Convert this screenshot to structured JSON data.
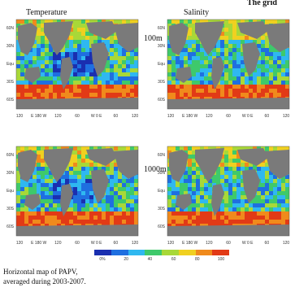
{
  "header": {
    "title_partial": "The grid"
  },
  "columns": [
    {
      "title": "Temperature"
    },
    {
      "title": "Salinity"
    }
  ],
  "rows": [
    {
      "depth_label": "100m"
    },
    {
      "depth_label": "1000m"
    }
  ],
  "map_axes": {
    "lat_ticks": [
      "60N",
      "30N",
      "Equ",
      "30S",
      "60S"
    ],
    "lon_ticks": [
      "120",
      "E 180 W",
      "120",
      "60",
      "W 0 E",
      "60",
      "120"
    ]
  },
  "colorbar": {
    "labels": [
      "0%",
      "20",
      "40",
      "60",
      "80",
      "100"
    ],
    "colors": [
      "#1a2fb0",
      "#1f6fe0",
      "#2fb8f0",
      "#3ec96b",
      "#a8d838",
      "#f0d020",
      "#f08a1c",
      "#e23a16"
    ]
  },
  "colors": {
    "land": "#7a7a7a",
    "ocean_base": "#f06a1a"
  },
  "caption": {
    "line1": "Horizontal map of  PAPV,",
    "line2": "averaged during 2003-2007."
  },
  "chart_data": {
    "type": "heatmap",
    "title": "",
    "panels": [
      {
        "variable": "Temperature",
        "depth": "100m"
      },
      {
        "variable": "Salinity",
        "depth": "100m"
      },
      {
        "variable": "Temperature",
        "depth": "1000m"
      },
      {
        "variable": "Salinity",
        "depth": "1000m"
      }
    ],
    "colorbar_range": [
      0,
      100
    ],
    "colorbar_unit": "%"
  }
}
